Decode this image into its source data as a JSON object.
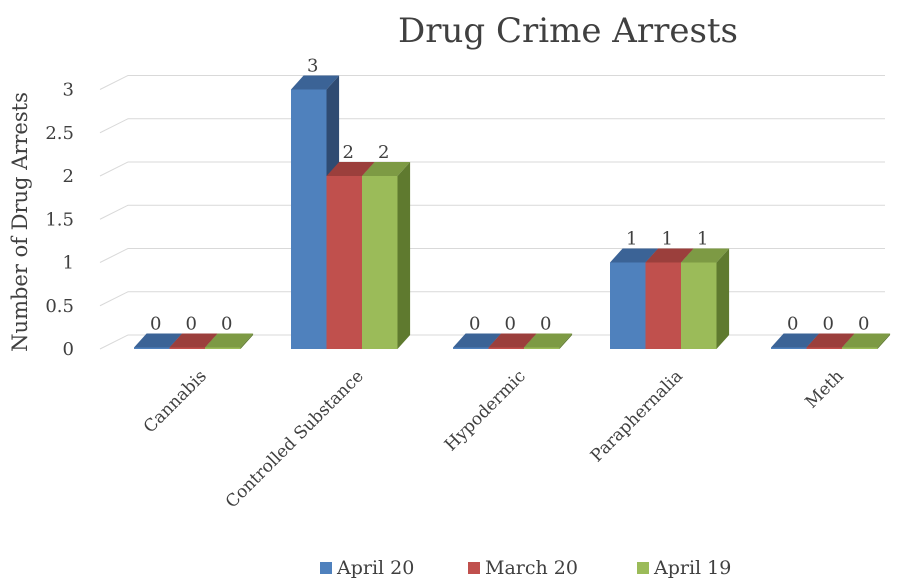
{
  "chart_data": {
    "type": "bar",
    "title": "Drug Crime Arrests",
    "xlabel": "",
    "ylabel": "Number of Drug Arrests",
    "ylim": [
      0,
      3
    ],
    "yticks": [
      "0",
      "0.5",
      "1",
      "1.5",
      "2",
      "2.5",
      "3"
    ],
    "categories": [
      "Cannabis",
      "Controlled Substance",
      "Hypodermic",
      "Paraphernalia",
      "Meth"
    ],
    "series": [
      {
        "name": "April 20",
        "values": [
          0,
          3,
          0,
          1,
          0
        ],
        "color": "#4f81bd",
        "side": "#2f4b72",
        "top": "#3b6396"
      },
      {
        "name": "March 20",
        "values": [
          0,
          2,
          0,
          1,
          0
        ],
        "color": "#c0504d",
        "side": "#7a2f2d",
        "top": "#9b3f3c"
      },
      {
        "name": "April 19",
        "values": [
          0,
          2,
          0,
          1,
          0
        ],
        "color": "#9bbb59",
        "side": "#5f7a2f",
        "top": "#7d9a44"
      }
    ],
    "data_labels": true,
    "grid": true,
    "legend_position": "bottom",
    "style": "3d-clustered-column"
  }
}
